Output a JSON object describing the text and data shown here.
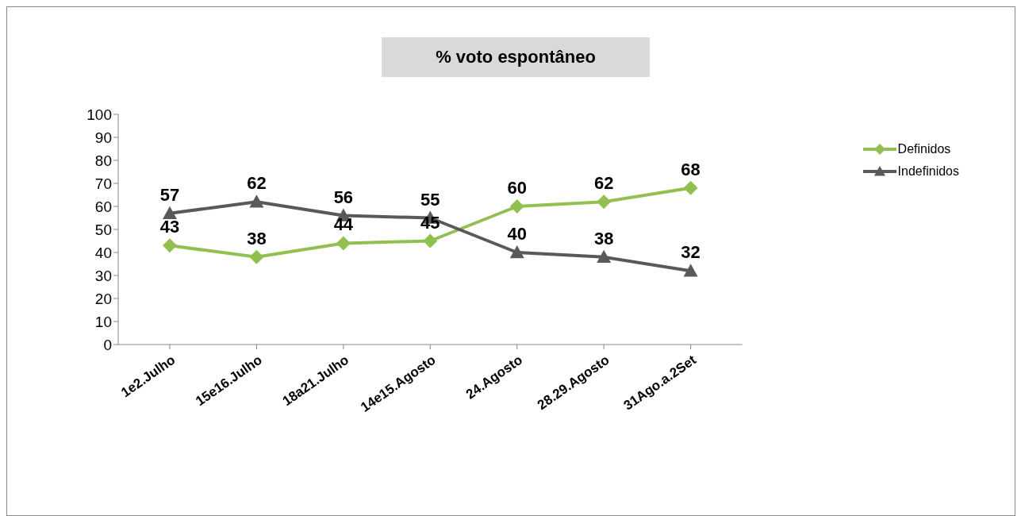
{
  "chart_data": {
    "type": "line",
    "title": "% voto espontâneo",
    "categories": [
      "1e2.Julho",
      "15e16.Julho",
      "18a21.Julho",
      "14e15.Agosto",
      "24.Agosto",
      "28.29.Agosto",
      "31Ago.a.2Set"
    ],
    "series": [
      {
        "name": "Definidos",
        "color": "#92c050",
        "marker": "diamond",
        "values": [
          43,
          38,
          44,
          45,
          60,
          62,
          68
        ]
      },
      {
        "name": "Indefinidos",
        "color": "#595959",
        "marker": "triangle",
        "values": [
          57,
          62,
          56,
          55,
          40,
          38,
          32
        ]
      }
    ],
    "ylim": [
      0,
      100
    ],
    "yticks": [
      0,
      10,
      20,
      30,
      40,
      50,
      60,
      70,
      80,
      90,
      100
    ],
    "grid": false,
    "legend": "top right",
    "data_labels": true,
    "line_style": "solid"
  }
}
